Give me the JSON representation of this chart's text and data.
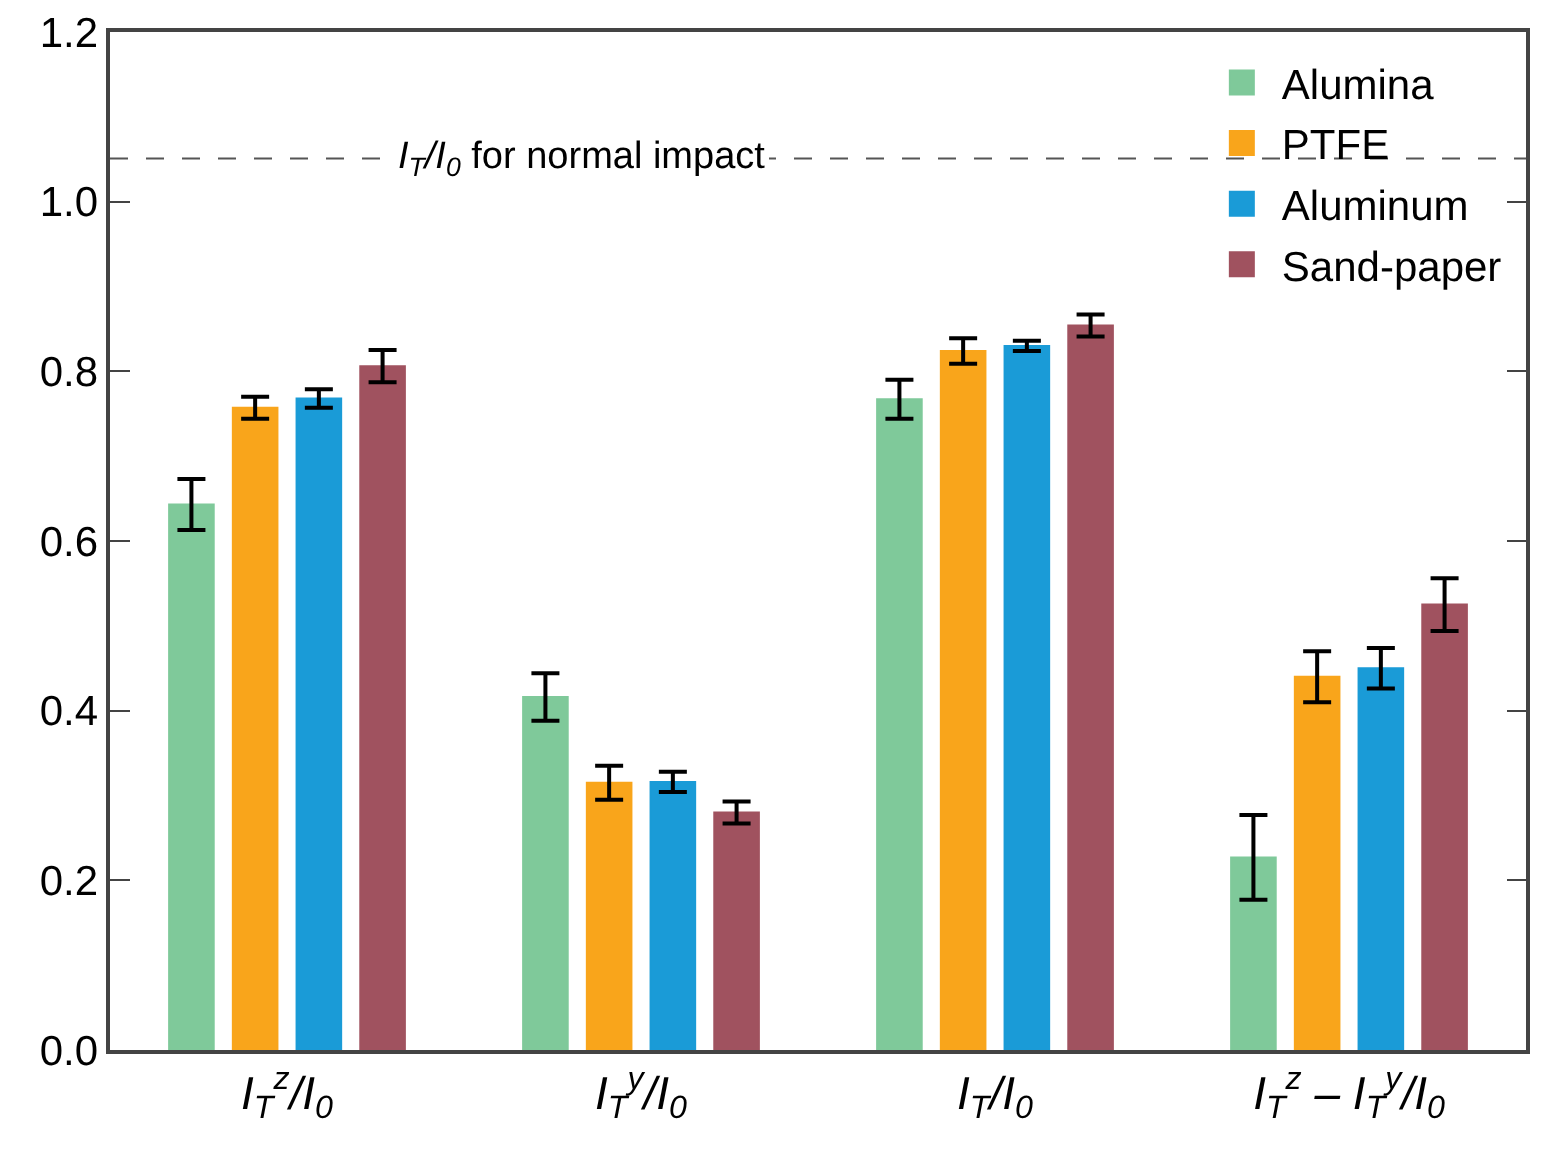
{
  "chart_data": {
    "type": "bar",
    "categories": [
      "I$_{T}$$^{z}$/I$_{0}$",
      "I$_{T}$$^{y}$/I$_{0}$",
      "I$_{T}$/I$_{0}$",
      "I$_{T}$$^{z}$ – I$_{T}$$^{y}$/I$_{0}$"
    ],
    "series": [
      {
        "name": "Alumina",
        "color": "#7fc99a",
        "values": [
          0.643,
          0.416,
          0.767,
          0.227
        ],
        "errors": [
          0.03,
          0.028,
          0.023,
          0.05
        ]
      },
      {
        "name": "PTFE",
        "color": "#f9a51b",
        "values": [
          0.757,
          0.315,
          0.824,
          0.44
        ],
        "errors": [
          0.013,
          0.02,
          0.015,
          0.03
        ]
      },
      {
        "name": "Aluminum",
        "color": "#1a9bd7",
        "values": [
          0.768,
          0.316,
          0.83,
          0.45
        ],
        "errors": [
          0.011,
          0.012,
          0.006,
          0.024
        ]
      },
      {
        "name": "Sand-paper",
        "color": "#a0525f",
        "values": [
          0.806,
          0.28,
          0.854,
          0.525
        ],
        "errors": [
          0.019,
          0.013,
          0.013,
          0.031
        ]
      }
    ],
    "ylim": [
      0,
      1.2
    ],
    "yticks": [
      {
        "value": 0,
        "label": "0.0"
      },
      0.2,
      0.4,
      0.6,
      0.8,
      {
        "value": 1,
        "label": "1.0"
      },
      1.2
    ],
    "ref_lines": [
      {
        "axis": "y",
        "value": 1.051,
        "label": "I$_{T}$/I$_{0}$ for normal impact",
        "color": "#555555",
        "line_style": "dashed"
      }
    ],
    "grid": false,
    "legend": "top right"
  }
}
